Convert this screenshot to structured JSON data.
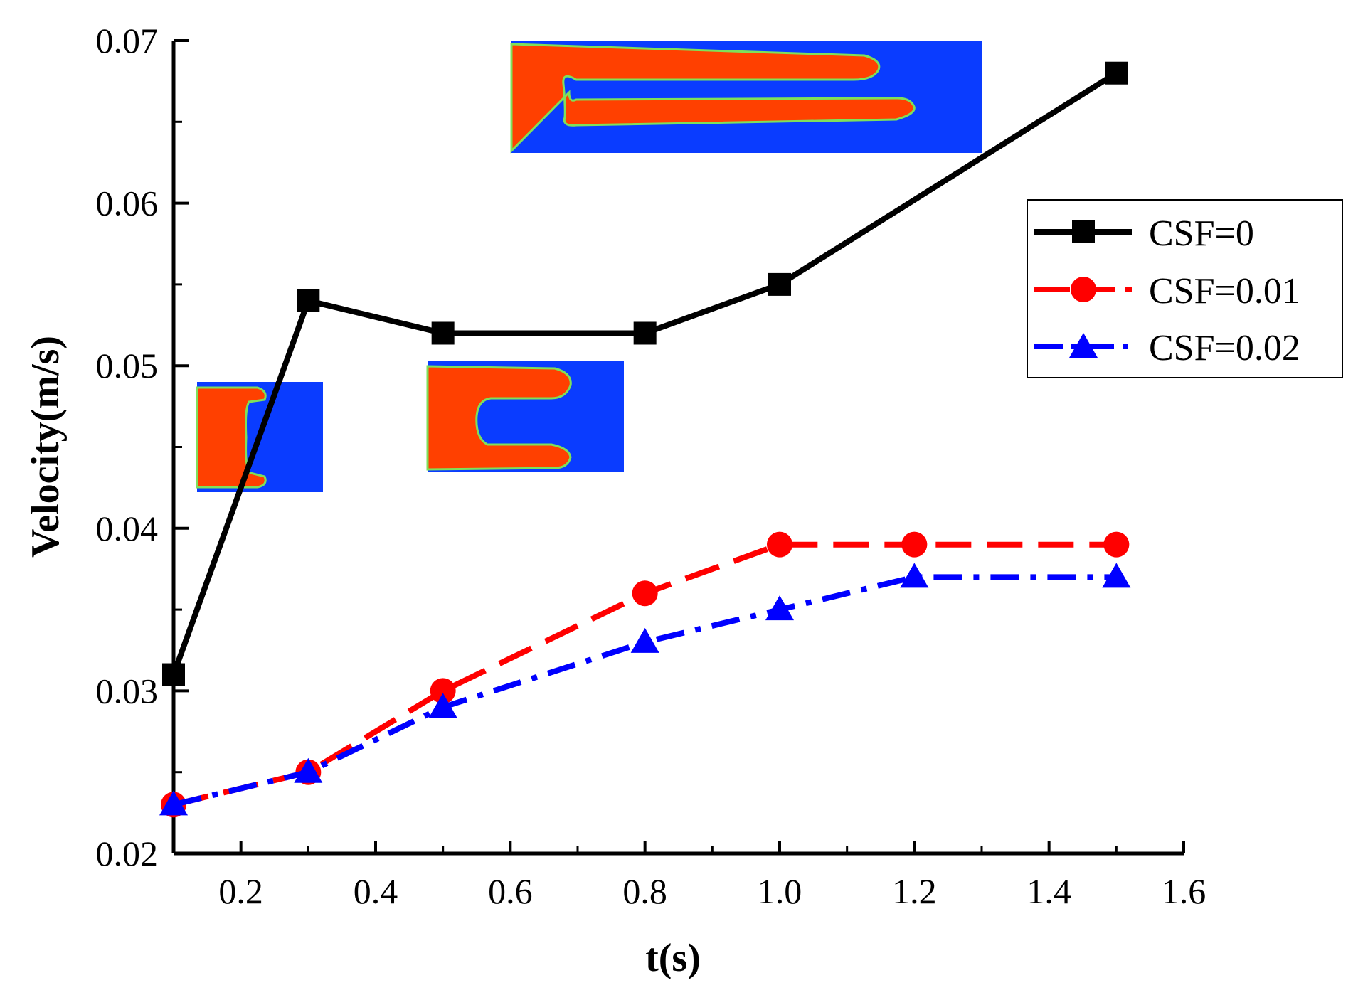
{
  "chart_data": {
    "type": "line",
    "title": "",
    "xlabel": "t(s)",
    "ylabel": "Velocity(m/s)",
    "xlim": [
      0.1,
      1.6
    ],
    "ylim": [
      0.02,
      0.07
    ],
    "xticks": [
      0.2,
      0.4,
      0.6,
      0.8,
      1.0,
      1.2,
      1.4,
      1.6
    ],
    "xtick_labels": [
      "0.2",
      "0.4",
      "0.6",
      "0.8",
      "1.0",
      "1.2",
      "1.4",
      "1.6"
    ],
    "yticks": [
      0.02,
      0.03,
      0.04,
      0.05,
      0.06,
      0.07
    ],
    "ytick_labels": [
      "0.02",
      "0.03",
      "0.04",
      "0.05",
      "0.06",
      "0.07"
    ],
    "grid": false,
    "legend_position": "right",
    "series": [
      {
        "name": "CSF=0",
        "color": "#000000",
        "line_style": "solid",
        "marker": "square",
        "x": [
          0.1,
          0.3,
          0.5,
          0.8,
          1.0,
          1.5
        ],
        "values": [
          0.031,
          0.054,
          0.052,
          0.052,
          0.055,
          0.068
        ]
      },
      {
        "name": "CSF=0.01",
        "color": "#ff0000",
        "line_style": "dash",
        "marker": "circle",
        "x": [
          0.1,
          0.3,
          0.5,
          0.8,
          1.0,
          1.2,
          1.5
        ],
        "values": [
          0.023,
          0.025,
          0.03,
          0.036,
          0.039,
          0.039,
          0.039
        ]
      },
      {
        "name": "CSF=0.02",
        "color": "#0000ff",
        "line_style": "dashdot",
        "marker": "triangle",
        "x": [
          0.1,
          0.3,
          0.5,
          0.8,
          1.0,
          1.2,
          1.5
        ],
        "values": [
          0.023,
          0.025,
          0.029,
          0.033,
          0.035,
          0.037,
          0.037
        ]
      }
    ],
    "insets": [
      {
        "name": "inset-interface-t0-3",
        "depicts": "phase-interface-two-short-fingers",
        "colors": [
          "#ff4000",
          "#0a3cff"
        ]
      },
      {
        "name": "inset-interface-t0-5",
        "depicts": "phase-interface-two-medium-fingers",
        "colors": [
          "#ff4000",
          "#0a3cff"
        ]
      },
      {
        "name": "inset-interface-t1-5",
        "depicts": "phase-interface-two-long-fingers",
        "colors": [
          "#ff4000",
          "#0a3cff"
        ]
      }
    ]
  }
}
